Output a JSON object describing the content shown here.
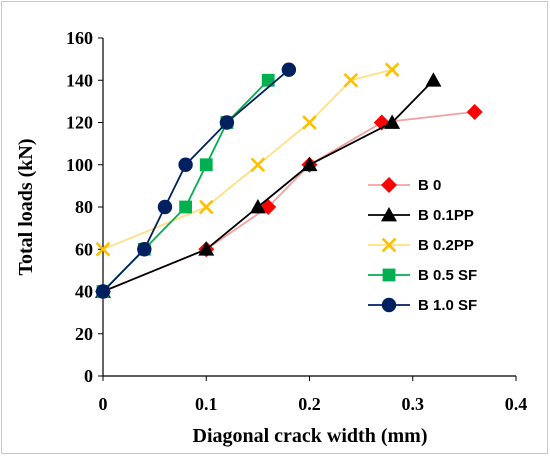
{
  "chart_data": {
    "type": "line",
    "title": "",
    "xlabel": "Diagonal crack width (mm)",
    "ylabel": "Total loads (kN)",
    "xlim": [
      0,
      0.4
    ],
    "ylim": [
      0,
      160
    ],
    "xticks": [
      0,
      0.1,
      0.2,
      0.3,
      0.4
    ],
    "xtick_labels": [
      "0",
      "0.1",
      "0.2",
      "0.3",
      "0.4"
    ],
    "yticks": [
      0,
      20,
      40,
      60,
      80,
      100,
      120,
      140,
      160
    ],
    "ytick_labels": [
      "0",
      "20",
      "40",
      "60",
      "80",
      "100",
      "120",
      "140",
      "160"
    ],
    "grid": false,
    "legend_position": "right",
    "series": [
      {
        "name": "B 0",
        "color": "#ff0000",
        "line_color": "#f4a0a0",
        "marker": "diamond",
        "points": [
          [
            0,
            40
          ],
          [
            0.1,
            60
          ],
          [
            0.16,
            80
          ],
          [
            0.2,
            100
          ],
          [
            0.27,
            120
          ],
          [
            0.36,
            125
          ]
        ]
      },
      {
        "name": "B 0.1PP",
        "color": "#000000",
        "line_color": "#000000",
        "marker": "triangle",
        "points": [
          [
            0,
            40
          ],
          [
            0.1,
            60
          ],
          [
            0.15,
            80
          ],
          [
            0.2,
            100
          ],
          [
            0.28,
            120
          ],
          [
            0.32,
            140
          ]
        ]
      },
      {
        "name": "B 0.2PP",
        "color": "#ffc000",
        "line_color": "#ffe083",
        "marker": "x",
        "points": [
          [
            0,
            60
          ],
          [
            0.1,
            80
          ],
          [
            0.15,
            100
          ],
          [
            0.2,
            120
          ],
          [
            0.24,
            140
          ],
          [
            0.28,
            145
          ]
        ]
      },
      {
        "name": "B 0.5 SF",
        "color": "#00b050",
        "line_color": "#00b050",
        "marker": "square",
        "points": [
          [
            0,
            40
          ],
          [
            0.04,
            60
          ],
          [
            0.08,
            80
          ],
          [
            0.1,
            100
          ],
          [
            0.12,
            120
          ],
          [
            0.16,
            140
          ]
        ]
      },
      {
        "name": "B 1.0 SF",
        "color": "#002060",
        "line_color": "#002060",
        "marker": "circle",
        "points": [
          [
            0,
            40
          ],
          [
            0.04,
            60
          ],
          [
            0.06,
            80
          ],
          [
            0.08,
            100
          ],
          [
            0.12,
            120
          ],
          [
            0.18,
            145
          ]
        ]
      }
    ]
  }
}
